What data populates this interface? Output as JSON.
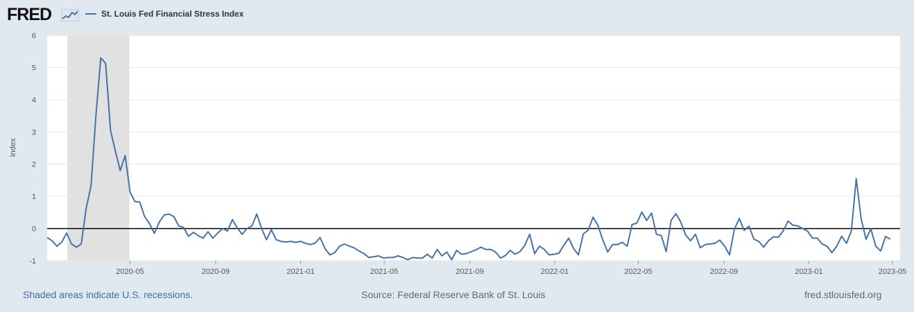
{
  "header": {
    "logo_text": "FRED",
    "legend_label": "St. Louis Fed Financial Stress Index"
  },
  "footer": {
    "recession_note": "Shaded areas indicate U.S. recessions.",
    "source": "Source: Federal Reserve Bank of St. Louis",
    "site": "fred.stlouisfed.org"
  },
  "colors": {
    "series": "#4572a7",
    "recession": "#e1e1e1",
    "zero_line": "#000000",
    "grid": "#e6e6e6",
    "background": "#e1e9f0"
  },
  "icons": {
    "logo_graph": "line-chart-icon"
  },
  "chart_data": {
    "type": "line",
    "title": "",
    "xlabel": "",
    "ylabel": "Index",
    "ylim": [
      -1,
      6
    ],
    "yticks": [
      -1,
      0,
      1,
      2,
      3,
      4,
      5,
      6
    ],
    "grid": true,
    "legend": "top-left",
    "x_start": "2020-01-03",
    "x_end": "2023-05-12",
    "x_ticks": [
      "2020-05",
      "2020-09",
      "2021-01",
      "2021-05",
      "2021-09",
      "2022-01",
      "2022-05",
      "2022-09",
      "2023-01",
      "2023-05"
    ],
    "recessions": [
      {
        "start": "2020-02-01",
        "end": "2020-04-30"
      }
    ],
    "reference_line": 0,
    "series": [
      {
        "name": "St. Louis Fed Financial Stress Index",
        "frequency": "weekly",
        "start": "2020-01-03",
        "values": [
          -0.28,
          -0.38,
          -0.55,
          -0.42,
          -0.14,
          -0.48,
          -0.58,
          -0.48,
          0.62,
          1.33,
          3.5,
          5.3,
          5.13,
          3.05,
          2.4,
          1.8,
          2.27,
          1.13,
          0.84,
          0.82,
          0.37,
          0.15,
          -0.15,
          0.2,
          0.42,
          0.45,
          0.37,
          0.08,
          0.03,
          -0.24,
          -0.12,
          -0.22,
          -0.3,
          -0.1,
          -0.3,
          -0.14,
          0.0,
          -0.08,
          0.28,
          0.02,
          -0.18,
          0.0,
          0.08,
          0.45,
          0.0,
          -0.35,
          -0.04,
          -0.35,
          -0.4,
          -0.42,
          -0.4,
          -0.43,
          -0.4,
          -0.46,
          -0.5,
          -0.45,
          -0.28,
          -0.62,
          -0.82,
          -0.75,
          -0.55,
          -0.48,
          -0.55,
          -0.6,
          -0.7,
          -0.78,
          -0.9,
          -0.88,
          -0.85,
          -0.92,
          -0.9,
          -0.9,
          -0.85,
          -0.9,
          -0.97,
          -0.9,
          -0.92,
          -0.92,
          -0.8,
          -0.92,
          -0.65,
          -0.85,
          -0.73,
          -0.97,
          -0.68,
          -0.8,
          -0.78,
          -0.72,
          -0.66,
          -0.58,
          -0.65,
          -0.65,
          -0.73,
          -0.92,
          -0.84,
          -0.68,
          -0.8,
          -0.72,
          -0.52,
          -0.18,
          -0.78,
          -0.55,
          -0.65,
          -0.82,
          -0.8,
          -0.77,
          -0.52,
          -0.3,
          -0.62,
          -0.82,
          -0.17,
          -0.05,
          0.35,
          0.1,
          -0.36,
          -0.73,
          -0.5,
          -0.5,
          -0.43,
          -0.55,
          0.12,
          0.17,
          0.51,
          0.25,
          0.48,
          -0.18,
          -0.22,
          -0.72,
          0.25,
          0.46,
          0.2,
          -0.2,
          -0.38,
          -0.18,
          -0.6,
          -0.5,
          -0.48,
          -0.46,
          -0.36,
          -0.55,
          -0.82,
          -0.02,
          0.31,
          -0.06,
          0.07,
          -0.33,
          -0.4,
          -0.58,
          -0.38,
          -0.26,
          -0.27,
          -0.08,
          0.23,
          0.1,
          0.08,
          0.0,
          -0.08,
          -0.3,
          -0.3,
          -0.48,
          -0.55,
          -0.75,
          -0.55,
          -0.24,
          -0.46,
          -0.07,
          1.55,
          0.3,
          -0.33,
          -0.01,
          -0.55,
          -0.7,
          -0.25,
          -0.33
        ]
      }
    ]
  }
}
